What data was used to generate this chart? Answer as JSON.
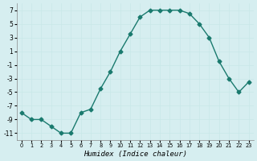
{
  "x": [
    0,
    1,
    2,
    3,
    4,
    5,
    6,
    7,
    8,
    9,
    10,
    11,
    12,
    13,
    14,
    15,
    16,
    17,
    18,
    19,
    20,
    21,
    22,
    23
  ],
  "y": [
    -8,
    -9,
    -9,
    -10,
    -11,
    -11,
    -8,
    -7.5,
    -4.5,
    -2,
    1,
    3.5,
    6,
    7,
    7,
    7,
    7,
    6.5,
    5,
    3,
    -0.5,
    -3,
    -5,
    -3.5
  ],
  "line_color": "#1a7a6e",
  "marker_color": "#1a7a6e",
  "bg_color": "#d6eef0",
  "grid_color": "#c8e8e8",
  "xlabel": "Humidex (Indice chaleur)",
  "xlim": [
    -0.5,
    23.5
  ],
  "ylim": [
    -12,
    8
  ],
  "yticks": [
    -11,
    -9,
    -7,
    -5,
    -3,
    -1,
    1,
    3,
    5,
    7
  ],
  "xticks": [
    0,
    1,
    2,
    3,
    4,
    5,
    6,
    7,
    8,
    9,
    10,
    11,
    12,
    13,
    14,
    15,
    16,
    17,
    18,
    19,
    20,
    21,
    22,
    23
  ]
}
